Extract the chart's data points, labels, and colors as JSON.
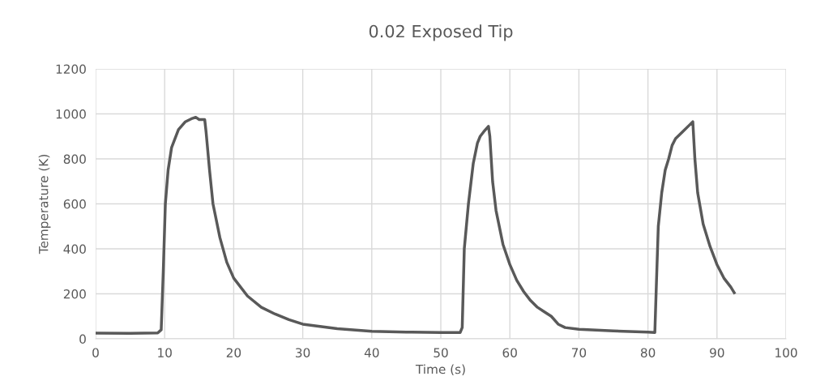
{
  "chart_data": {
    "type": "line",
    "title": "0.02 Exposed Tip",
    "xlabel": "Time (s)",
    "ylabel": "Temperature (K)",
    "xlim": [
      0,
      100
    ],
    "xticks": [
      0,
      10,
      20,
      30,
      40,
      50,
      60,
      70,
      80,
      90,
      100
    ],
    "ylim": [
      0,
      1200
    ],
    "yticks": [
      0,
      200,
      400,
      600,
      800,
      1000,
      1200
    ],
    "grid": true,
    "legend": false,
    "series": [
      {
        "color": "#595959",
        "x": [
          0,
          5,
          9,
          9.5,
          9.8,
          10.1,
          10.5,
          11,
          12,
          13,
          14,
          14.5,
          15,
          15.8,
          16,
          16.5,
          17,
          18,
          19,
          20,
          22,
          24,
          26,
          28,
          30,
          35,
          40,
          45,
          50,
          52.8,
          53.1,
          53.4,
          54,
          54.7,
          55.3,
          55.7,
          56.2,
          56.9,
          57.1,
          57.5,
          58,
          59,
          60,
          61,
          62,
          63,
          64,
          65,
          66,
          67,
          68,
          70,
          75,
          80,
          81,
          81.2,
          81.5,
          82,
          82.5,
          83,
          83.5,
          84,
          85,
          86,
          86.5,
          86.8,
          87.2,
          88,
          89,
          90,
          91,
          92,
          92.5
        ],
        "values": [
          25,
          24,
          26,
          40,
          300,
          600,
          750,
          850,
          930,
          965,
          980,
          985,
          975,
          975,
          920,
          750,
          600,
          450,
          340,
          270,
          190,
          140,
          110,
          85,
          65,
          45,
          33,
          30,
          28,
          28,
          50,
          400,
          600,
          780,
          870,
          900,
          920,
          945,
          900,
          700,
          570,
          420,
          330,
          260,
          210,
          170,
          140,
          120,
          100,
          65,
          50,
          42,
          35,
          30,
          28,
          220,
          500,
          650,
          750,
          800,
          860,
          890,
          920,
          950,
          965,
          800,
          650,
          510,
          410,
          330,
          270,
          230,
          205
        ]
      }
    ]
  }
}
